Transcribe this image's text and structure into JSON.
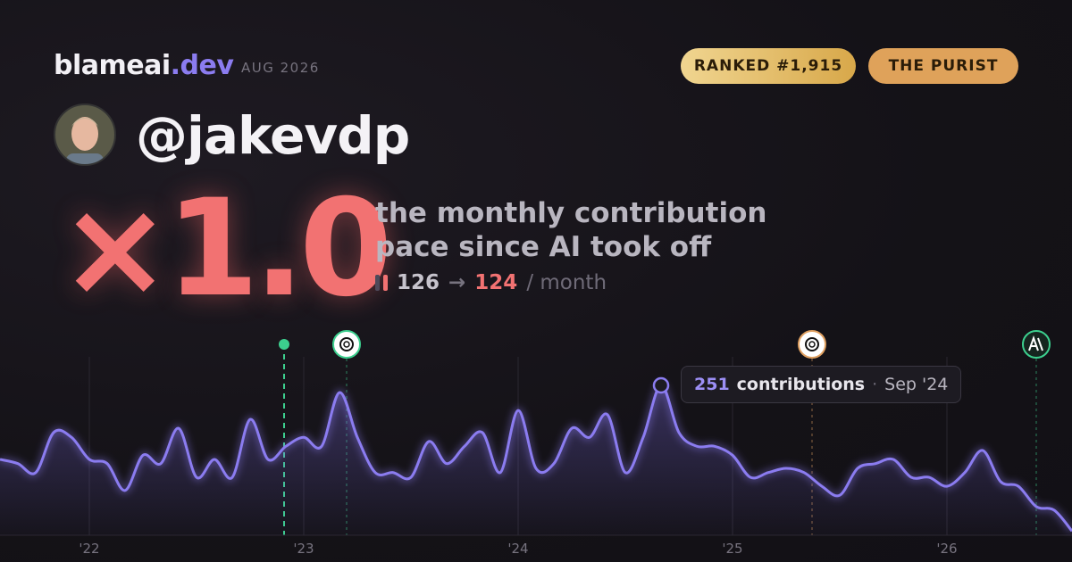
{
  "header": {
    "brand": "blameai",
    "brand_suffix": ".dev",
    "period": "AUG 2026",
    "badges": [
      "RANKED #1,915",
      "THE PURIST"
    ],
    "handle": "@jakevdp"
  },
  "summary": {
    "multiplier": "×1.0",
    "description": [
      "the monthly contribution",
      "pace since AI took off"
    ],
    "before": "126",
    "arrow": "→",
    "after": "124",
    "unit": "/ month"
  },
  "tooltip": {
    "label": "contributions",
    "separator": "·",
    "date": "Sep '24"
  },
  "chart_data": {
    "type": "area",
    "categories": [
      null,
      null,
      null,
      null,
      null,
      "'22",
      null,
      null,
      null,
      null,
      null,
      null,
      null,
      null,
      null,
      null,
      null,
      "'23",
      null,
      null,
      null,
      null,
      null,
      null,
      null,
      null,
      null,
      null,
      null,
      "'24",
      null,
      null,
      null,
      null,
      null,
      null,
      null,
      null,
      null,
      null,
      null,
      "'25",
      null,
      null,
      null,
      null,
      null,
      null,
      null,
      null,
      null,
      null,
      null,
      "'26",
      null,
      null,
      null,
      null,
      null,
      null,
      null
    ],
    "series": [
      {
        "name": "contributions",
        "color": "#8b7cf0",
        "values": [
          127,
          120,
          105,
          172,
          164,
          127,
          120,
          75,
          134,
          120,
          179,
          97,
          127,
          97,
          194,
          127,
          149,
          164,
          149,
          239,
          164,
          105,
          105,
          97,
          157,
          120,
          149,
          172,
          105,
          209,
          112,
          120,
          179,
          164,
          202,
          105,
          164,
          251,
          172,
          149,
          149,
          134,
          97,
          105,
          112,
          105,
          82,
          67,
          112,
          120,
          127,
          97,
          97,
          82,
          105,
          142,
          90,
          82,
          48,
          42,
          7
        ]
      }
    ],
    "ylim": [
      0,
      251
    ]
  }
}
